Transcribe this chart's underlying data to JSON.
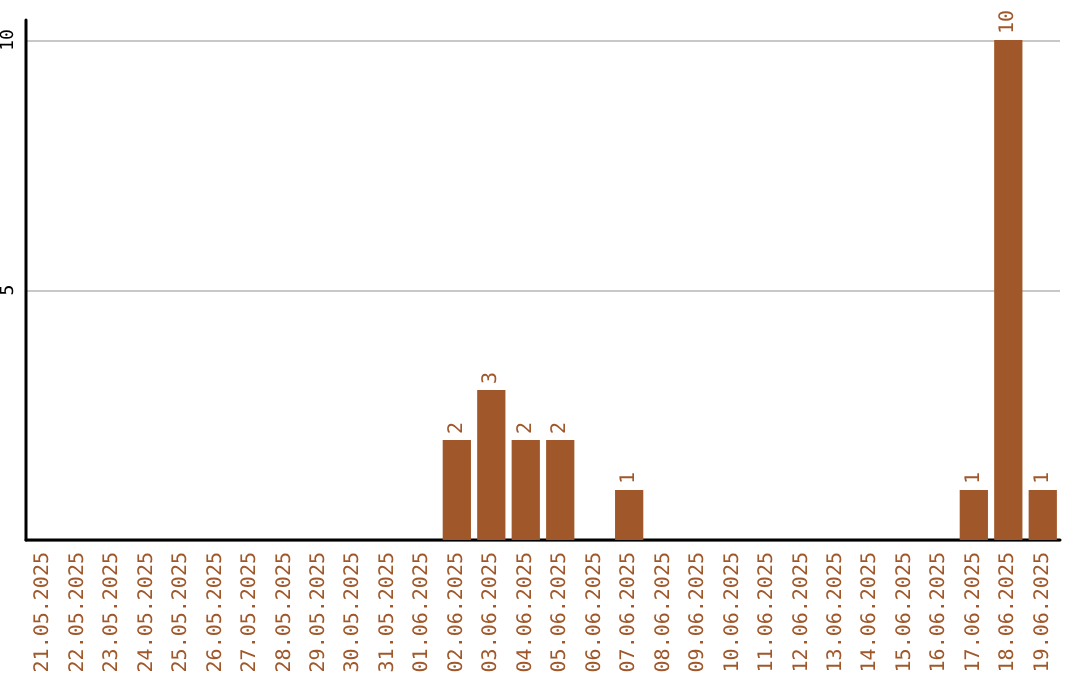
{
  "chart_data": {
    "type": "bar",
    "categories": [
      "21.05.2025",
      "22.05.2025",
      "23.05.2025",
      "24.05.2025",
      "25.05.2025",
      "26.05.2025",
      "27.05.2025",
      "28.05.2025",
      "29.05.2025",
      "30.05.2025",
      "31.05.2025",
      "01.06.2025",
      "02.06.2025",
      "03.06.2025",
      "04.06.2025",
      "05.06.2025",
      "06.06.2025",
      "07.06.2025",
      "08.06.2025",
      "09.06.2025",
      "10.06.2025",
      "11.06.2025",
      "12.06.2025",
      "13.06.2025",
      "14.06.2025",
      "15.06.2025",
      "16.06.2025",
      "17.06.2025",
      "18.06.2025",
      "19.06.2025"
    ],
    "values": [
      0,
      0,
      0,
      0,
      0,
      0,
      0,
      0,
      0,
      0,
      0,
      0,
      2,
      3,
      2,
      2,
      0,
      1,
      0,
      0,
      0,
      0,
      0,
      0,
      0,
      0,
      0,
      1,
      10,
      1
    ],
    "value_labels": [
      null,
      null,
      null,
      null,
      null,
      null,
      null,
      null,
      null,
      null,
      null,
      null,
      "2",
      "3",
      "2",
      "2",
      null,
      "1",
      null,
      null,
      null,
      null,
      null,
      null,
      null,
      null,
      null,
      "1",
      "10",
      "1"
    ],
    "color": "#a0582a",
    "ylim": [
      0,
      10.4
    ],
    "yticks": [
      {
        "value": 0,
        "label": null
      },
      5,
      10
    ],
    "grid": "y"
  }
}
